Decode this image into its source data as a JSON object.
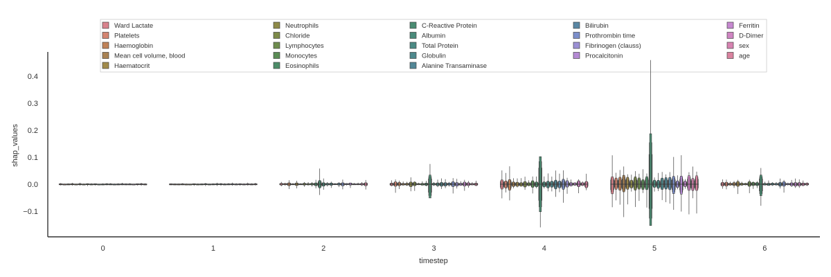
{
  "chart_data": {
    "type": "boxen",
    "xlabel": "timestep",
    "ylabel": "shap_values",
    "categories": [
      "0",
      "1",
      "2",
      "3",
      "4",
      "5",
      "6"
    ],
    "ylim": [
      -0.195,
      0.49
    ],
    "yticks": [
      -0.1,
      0.0,
      0.1,
      0.2,
      0.3,
      0.4
    ],
    "ytick_labels": [
      "−0.1",
      "0.0",
      "0.1",
      "0.2",
      "0.3",
      "0.4"
    ],
    "legend_position": "top",
    "series": [
      {
        "name": "Ward Lactate",
        "color": "#d9828c"
      },
      {
        "name": "Platelets",
        "color": "#d48470"
      },
      {
        "name": "Haemoglobin",
        "color": "#c08258"
      },
      {
        "name": "Mean cell volume, blood",
        "color": "#a98253"
      },
      {
        "name": "Haematocrit",
        "color": "#a18a4a"
      },
      {
        "name": "Neutrophils",
        "color": "#8e8a48"
      },
      {
        "name": "Chloride",
        "color": "#7d8a48"
      },
      {
        "name": "Lymphocytes",
        "color": "#6e8c4d"
      },
      {
        "name": "Monocytes",
        "color": "#5a8c55"
      },
      {
        "name": "Eosinophils",
        "color": "#4c8c68"
      },
      {
        "name": "C-Reactive Protein",
        "color": "#4a8c72"
      },
      {
        "name": "Albumin",
        "color": "#4a8b7b"
      },
      {
        "name": "Total Protein",
        "color": "#4b8a84"
      },
      {
        "name": "Globulin",
        "color": "#4e898d"
      },
      {
        "name": "Alanine Transaminase",
        "color": "#528796"
      },
      {
        "name": "Bilirubin",
        "color": "#5a87a4"
      },
      {
        "name": "Prothrombin time",
        "color": "#7c8fcb"
      },
      {
        "name": "Fibrinogen (clauss)",
        "color": "#9b90d4"
      },
      {
        "name": "Procalcitonin",
        "color": "#b48ad4"
      },
      {
        "name": "Ferritin",
        "color": "#c688d0"
      },
      {
        "name": "D-Dimer",
        "color": "#cf85c2"
      },
      {
        "name": "sex",
        "color": "#d683b1"
      },
      {
        "name": "age",
        "color": "#d9829f"
      }
    ],
    "spread_by_timestep": [
      0.006,
      0.006,
      0.018,
      0.03,
      0.06,
      0.11,
      0.035
    ],
    "notable": [
      {
        "timestep": "5",
        "feature": "C-Reactive Protein",
        "max": 0.46,
        "min": -0.14,
        "q75": 0.11,
        "q25": -0.09
      },
      {
        "timestep": "4",
        "feature": "C-Reactive Protein",
        "max": 0.1,
        "min": -0.16,
        "q75": 0.06,
        "q25": -0.06
      },
      {
        "timestep": "3",
        "feature": "C-Reactive Protein",
        "max": 0.075,
        "min": -0.05,
        "q75": 0.02,
        "q25": -0.03
      },
      {
        "timestep": "2",
        "feature": "C-Reactive Protein",
        "max": 0.058,
        "min": -0.04,
        "q75": 0.008,
        "q25": -0.008
      },
      {
        "timestep": "6",
        "feature": "C-Reactive Protein",
        "max": 0.06,
        "min": -0.08,
        "q75": 0.02,
        "q25": -0.025
      }
    ]
  }
}
